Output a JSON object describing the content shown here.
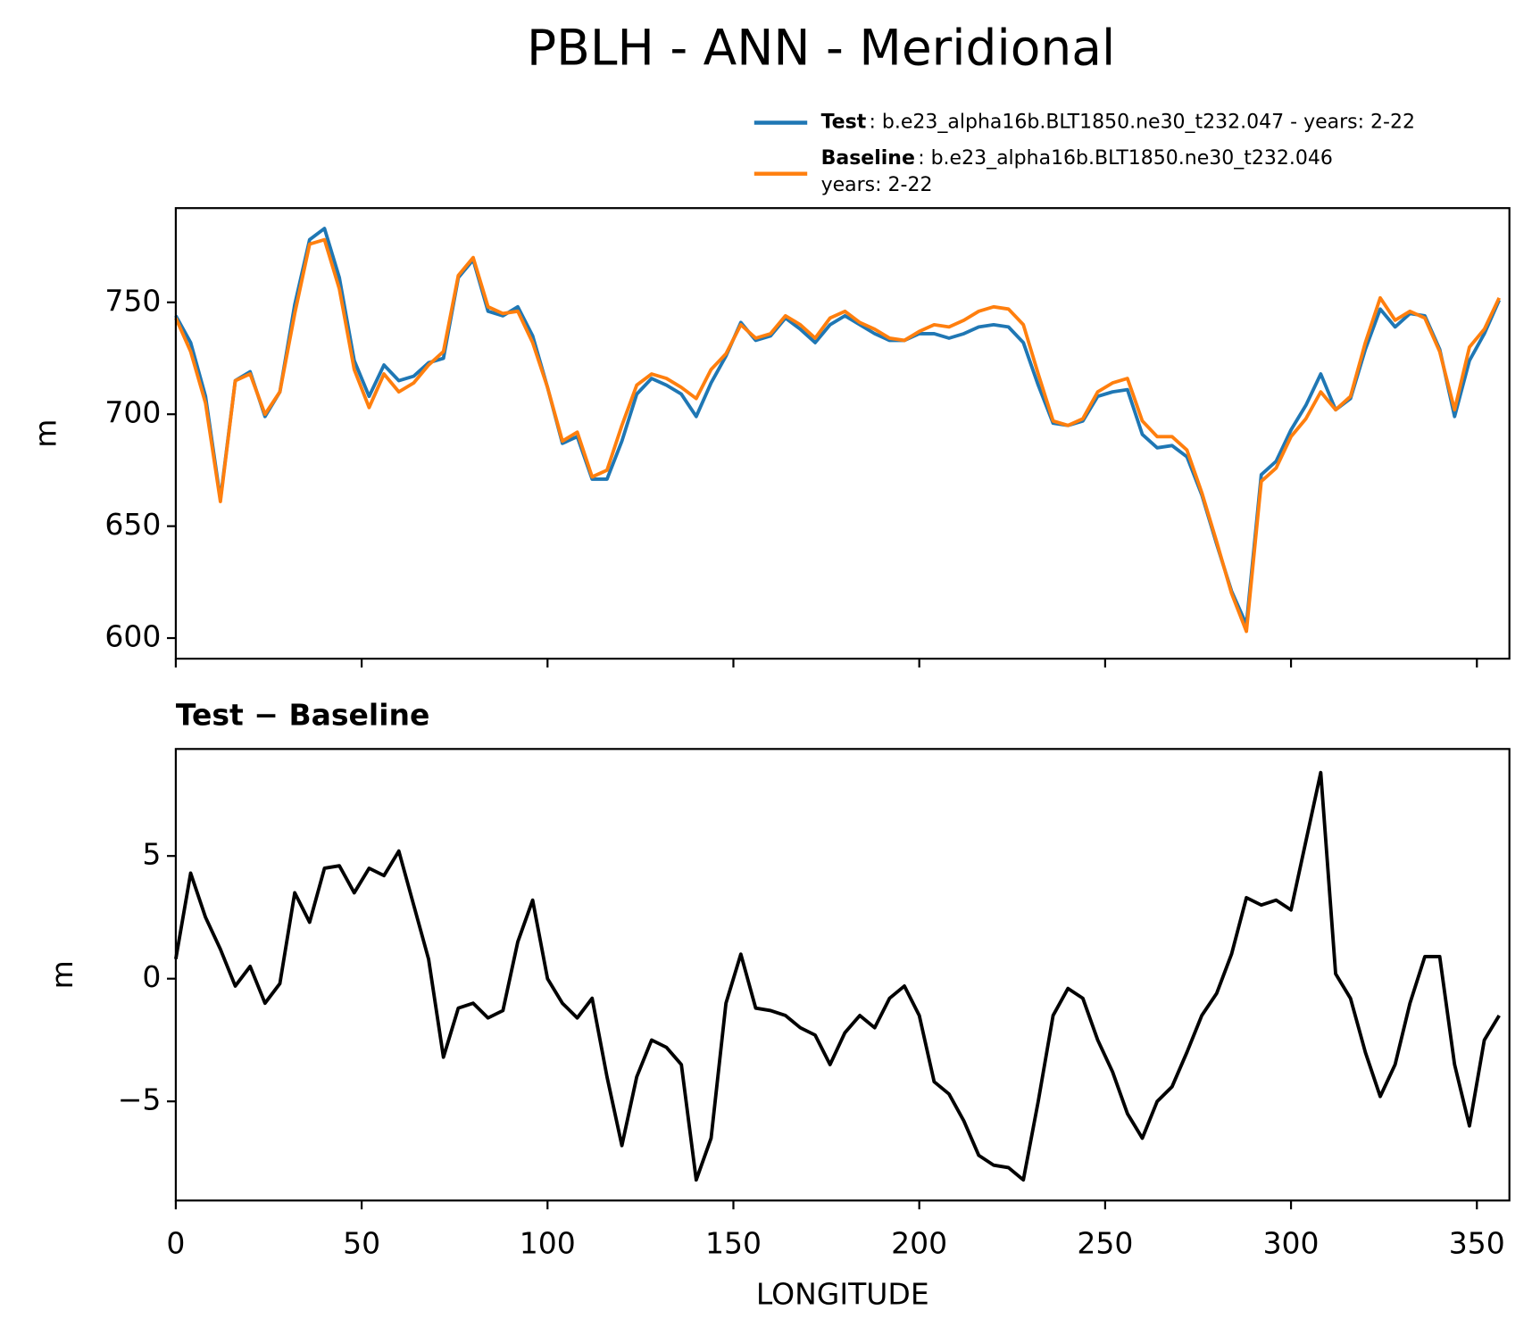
{
  "title": "PBLH - ANN - Meridional",
  "chart_data": [
    {
      "type": "line",
      "ylabel": "m",
      "x": [
        0,
        4,
        8,
        12,
        16,
        20,
        24,
        28,
        32,
        36,
        40,
        44,
        48,
        52,
        56,
        60,
        64,
        68,
        72,
        76,
        80,
        84,
        88,
        92,
        96,
        100,
        104,
        108,
        112,
        116,
        120,
        124,
        128,
        132,
        136,
        140,
        144,
        148,
        152,
        156,
        160,
        164,
        168,
        172,
        176,
        180,
        184,
        188,
        192,
        196,
        200,
        204,
        208,
        212,
        216,
        220,
        224,
        228,
        232,
        236,
        240,
        244,
        248,
        252,
        256,
        260,
        264,
        268,
        272,
        276,
        280,
        284,
        288,
        292,
        296,
        300,
        304,
        308,
        312,
        316,
        320,
        324,
        328,
        332,
        336,
        340,
        344,
        348,
        352,
        356
      ],
      "series": [
        {
          "name": "Test",
          "description": ": b.e23_alpha16b.BLT1850.ne30_t232.047 - years: 2-22",
          "color": "#1f77b4",
          "values": [
            744,
            732,
            708,
            662,
            715,
            719,
            699,
            710,
            749,
            778,
            783,
            761,
            724,
            708,
            722,
            715,
            717,
            723,
            725,
            761,
            769,
            746,
            744,
            748,
            735,
            712,
            687,
            690,
            671,
            671,
            688,
            709,
            716,
            713,
            709,
            699,
            714,
            726,
            741,
            733,
            735,
            743,
            738,
            732,
            740,
            744,
            740,
            736,
            733,
            733,
            736,
            736,
            734,
            736,
            739,
            740,
            739,
            732,
            713,
            696,
            695,
            697,
            708,
            710,
            711,
            691,
            685,
            686,
            681,
            664,
            642,
            621,
            606,
            673,
            679,
            693,
            704,
            718,
            702,
            707,
            729,
            747,
            739,
            745,
            744,
            729,
            699,
            724,
            736,
            751
          ]
        },
        {
          "name": "Baseline",
          "description": ": b.e23_alpha16b.BLT1850.ne30_t232.046",
          "description2": "years: 2-22",
          "color": "#ff7f0e",
          "values": [
            743,
            728,
            705,
            661,
            715,
            718,
            700,
            710,
            745,
            776,
            778,
            756,
            720,
            703,
            718,
            710,
            714,
            722,
            728,
            762,
            770,
            748,
            745,
            746,
            732,
            712,
            688,
            692,
            672,
            675,
            695,
            713,
            718,
            716,
            712,
            707,
            720,
            727,
            740,
            734,
            736,
            744,
            740,
            734,
            743,
            746,
            741,
            738,
            734,
            733,
            737,
            740,
            739,
            742,
            746,
            748,
            747,
            740,
            718,
            697,
            695,
            698,
            710,
            714,
            716,
            697,
            690,
            690,
            684,
            665,
            643,
            620,
            603,
            670,
            676,
            690,
            698,
            710,
            702,
            708,
            732,
            752,
            742,
            746,
            743,
            728,
            702,
            730,
            738,
            752
          ]
        }
      ],
      "xlim": [
        0,
        358.75
      ],
      "xticks": [
        0,
        50,
        100,
        150,
        200,
        250,
        300,
        350
      ],
      "x_tick_labels": false,
      "ylim": [
        590.8,
        792.1
      ],
      "yticks": [
        600,
        650,
        700,
        750
      ]
    },
    {
      "type": "line",
      "title": "Test − Baseline",
      "ylabel": "m",
      "xlabel": "LONGITUDE",
      "x": [
        0,
        4,
        8,
        12,
        16,
        20,
        24,
        28,
        32,
        36,
        40,
        44,
        48,
        52,
        56,
        60,
        64,
        68,
        72,
        76,
        80,
        84,
        88,
        92,
        96,
        100,
        104,
        108,
        112,
        116,
        120,
        124,
        128,
        132,
        136,
        140,
        144,
        148,
        152,
        156,
        160,
        164,
        168,
        172,
        176,
        180,
        184,
        188,
        192,
        196,
        200,
        204,
        208,
        212,
        216,
        220,
        224,
        228,
        232,
        236,
        240,
        244,
        248,
        252,
        256,
        260,
        264,
        268,
        272,
        276,
        280,
        284,
        288,
        292,
        296,
        300,
        304,
        308,
        312,
        316,
        320,
        324,
        328,
        332,
        336,
        340,
        344,
        348,
        352,
        356
      ],
      "series": [
        {
          "color": "#000000",
          "values": [
            0.8,
            4.3,
            2.5,
            1.2,
            -0.3,
            0.5,
            -1.0,
            -0.2,
            3.5,
            2.3,
            4.5,
            4.6,
            3.5,
            4.5,
            4.2,
            5.2,
            3.0,
            0.8,
            -3.2,
            -1.2,
            -1.0,
            -1.6,
            -1.3,
            1.5,
            3.2,
            0.0,
            -1.0,
            -1.6,
            -0.8,
            -4.0,
            -6.8,
            -4.0,
            -2.5,
            -2.8,
            -3.5,
            -8.2,
            -6.5,
            -1.0,
            1.0,
            -1.2,
            -1.3,
            -1.5,
            -2.0,
            -2.3,
            -3.5,
            -2.2,
            -1.5,
            -2.0,
            -0.8,
            -0.3,
            -1.5,
            -4.2,
            -4.7,
            -5.8,
            -7.2,
            -7.6,
            -7.7,
            -8.2,
            -5.0,
            -1.5,
            -0.4,
            -0.8,
            -2.5,
            -3.8,
            -5.5,
            -6.5,
            -5.0,
            -4.4,
            -3.0,
            -1.5,
            -0.6,
            1.0,
            3.3,
            3.0,
            3.2,
            2.8,
            5.6,
            8.4,
            0.2,
            -0.8,
            -3.0,
            -4.8,
            -3.5,
            -1.0,
            0.9,
            0.9,
            -3.5,
            -6.0,
            -2.5,
            -1.5
          ]
        }
      ],
      "xlim": [
        0,
        358.75
      ],
      "xticks": [
        0,
        50,
        100,
        150,
        200,
        250,
        300,
        350
      ],
      "x_tick_labels": true,
      "ylim": [
        -9.04,
        9.36
      ],
      "yticks": [
        {
          "value": -5,
          "label": "−5"
        },
        0,
        5
      ]
    }
  ]
}
